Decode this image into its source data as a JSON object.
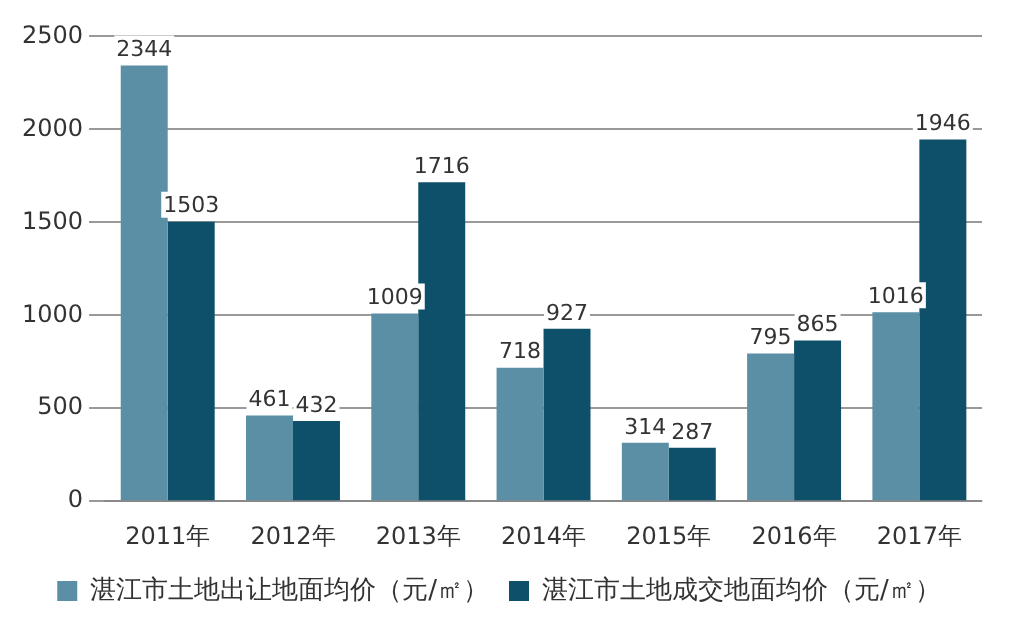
{
  "chart_data": {
    "type": "bar",
    "categories": [
      "2011年",
      "2012年",
      "2013年",
      "2014年",
      "2015年",
      "2016年",
      "2017年"
    ],
    "series": [
      {
        "name": "湛江市土地出让地面均价（元/㎡）",
        "color": "#5b8fa5",
        "values": [
          2344,
          461,
          1009,
          718,
          314,
          795,
          1016
        ]
      },
      {
        "name": "湛江市土地成交地面均价（元/㎡）",
        "color": "#0e5069",
        "values": [
          1503,
          432,
          1716,
          927,
          287,
          865,
          1946
        ]
      }
    ],
    "ylim": [
      0,
      2500
    ],
    "yticks": [
      0,
      500,
      1000,
      1500,
      2000,
      2500
    ],
    "grid": "y",
    "legend": "bottom",
    "data_labels": true
  }
}
